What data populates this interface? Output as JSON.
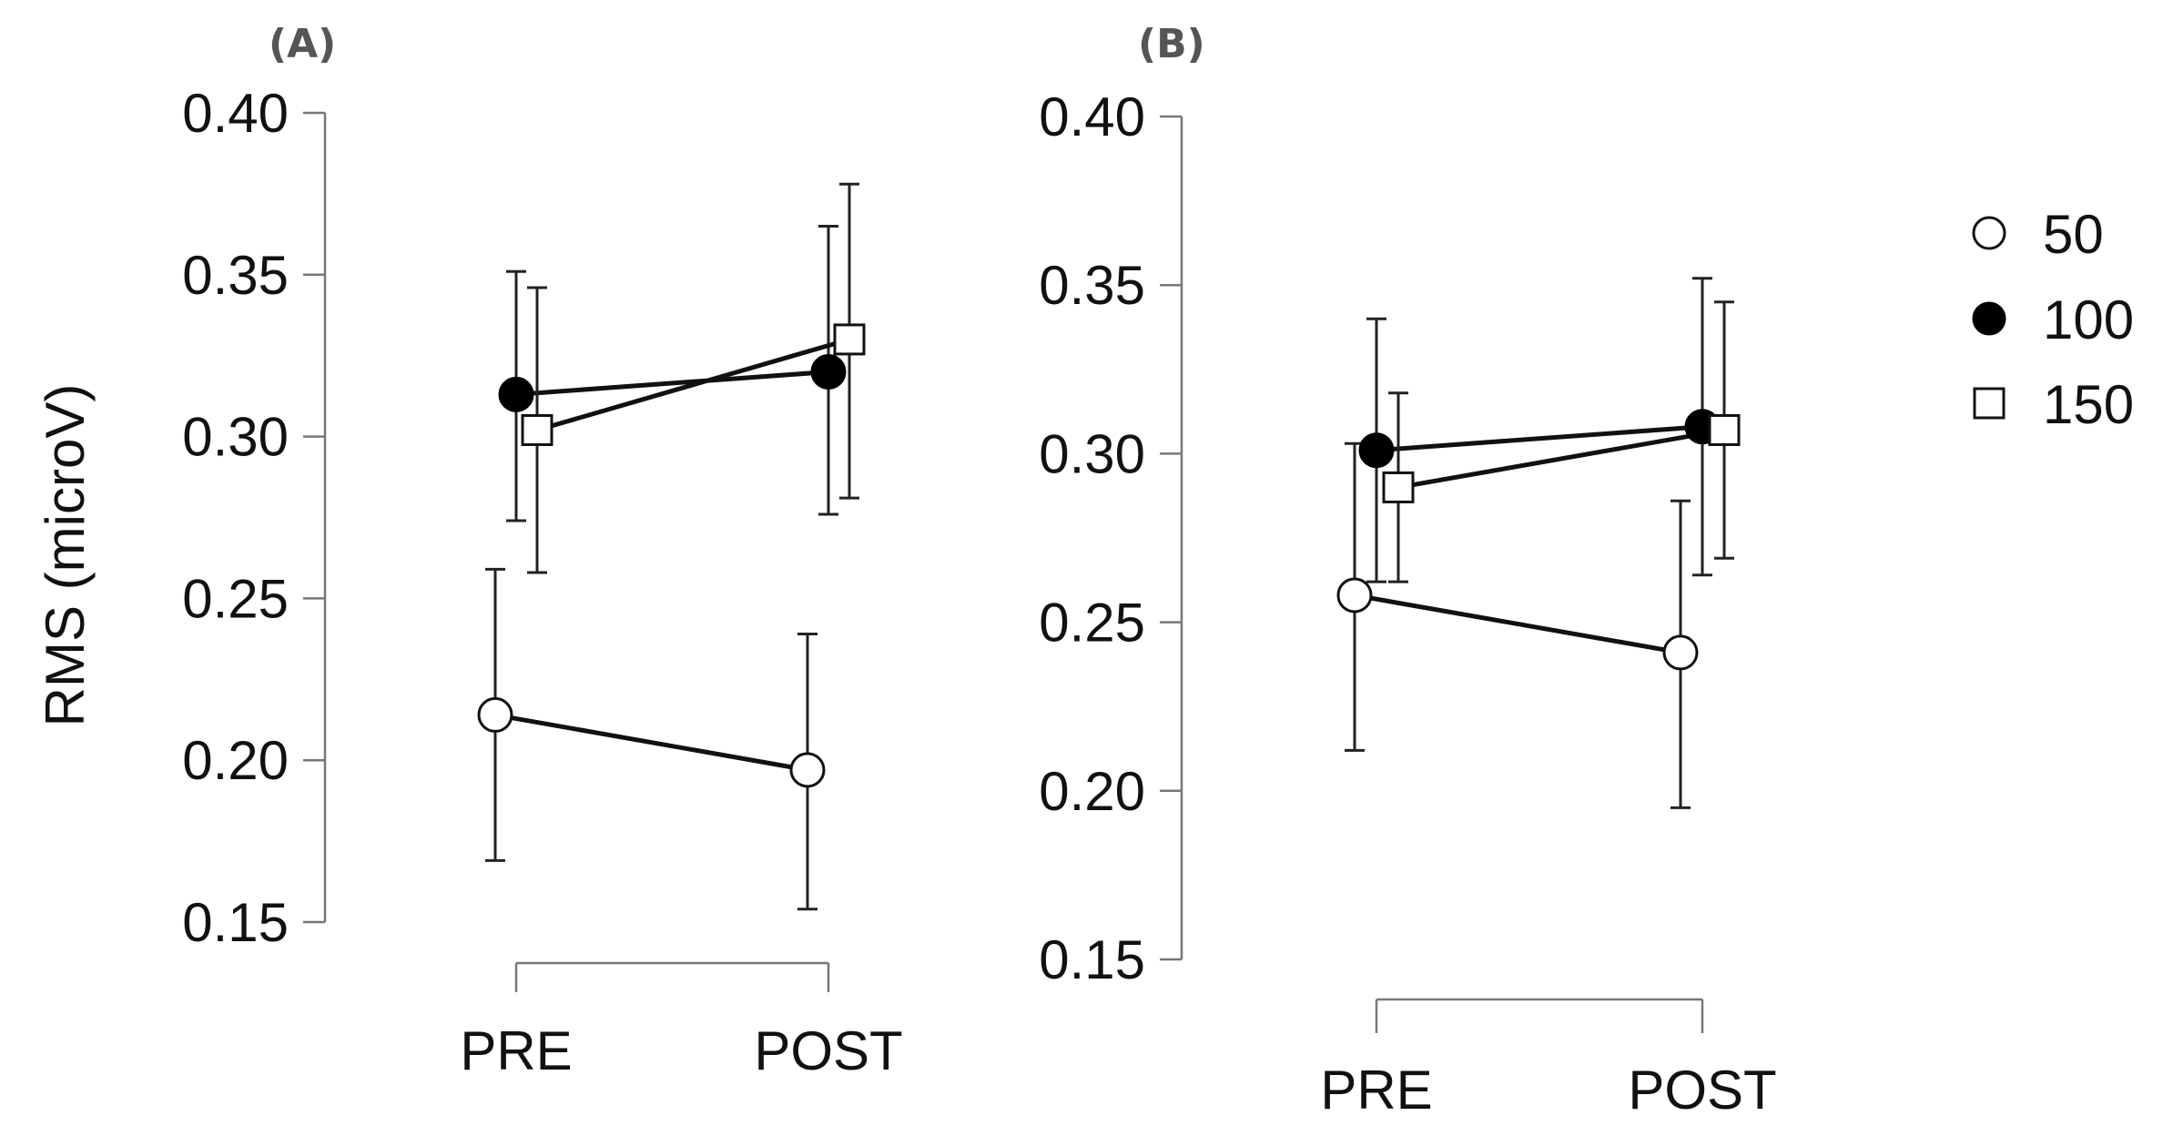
{
  "chart_data": [
    {
      "panel": "(A)",
      "type": "line",
      "ylabel": "RMS (microV)",
      "ylim": [
        0.15,
        0.4
      ],
      "yticks": [
        "0.15",
        "0.20",
        "0.25",
        "0.30",
        "0.35",
        "0.40"
      ],
      "categories": [
        "PRE",
        "POST"
      ],
      "series": [
        {
          "name": "50",
          "marker": "open-circle",
          "values": [
            0.214,
            0.197
          ],
          "err_low": [
            0.169,
            0.154
          ],
          "err_high": [
            0.259,
            0.239
          ]
        },
        {
          "name": "100",
          "marker": "filled-circle",
          "values": [
            0.313,
            0.32
          ],
          "err_low": [
            0.274,
            0.276
          ],
          "err_high": [
            0.351,
            0.365
          ]
        },
        {
          "name": "150",
          "marker": "open-square",
          "values": [
            0.302,
            0.33
          ],
          "err_low": [
            0.258,
            0.281
          ],
          "err_high": [
            0.346,
            0.378
          ]
        }
      ]
    },
    {
      "panel": "(B)",
      "type": "line",
      "ylabel": "",
      "ylim": [
        0.15,
        0.4
      ],
      "yticks": [
        "0.15",
        "0.20",
        "0.25",
        "0.30",
        "0.35",
        "0.40"
      ],
      "categories": [
        "PRE",
        "POST"
      ],
      "series": [
        {
          "name": "50",
          "marker": "open-circle",
          "values": [
            0.258,
            0.241
          ],
          "err_low": [
            0.212,
            0.195
          ],
          "err_high": [
            0.303,
            0.286
          ]
        },
        {
          "name": "100",
          "marker": "filled-circle",
          "values": [
            0.301,
            0.308
          ],
          "err_low": [
            0.262,
            0.264
          ],
          "err_high": [
            0.34,
            0.352
          ]
        },
        {
          "name": "150",
          "marker": "open-square",
          "values": [
            0.29,
            0.307
          ],
          "err_low": [
            0.262,
            0.269
          ],
          "err_high": [
            0.318,
            0.345
          ]
        }
      ]
    }
  ],
  "legend": {
    "position": "top-right",
    "items": [
      {
        "label": "50",
        "marker": "open-circle"
      },
      {
        "label": "100",
        "marker": "filled-circle"
      },
      {
        "label": "150",
        "marker": "open-square"
      }
    ]
  }
}
